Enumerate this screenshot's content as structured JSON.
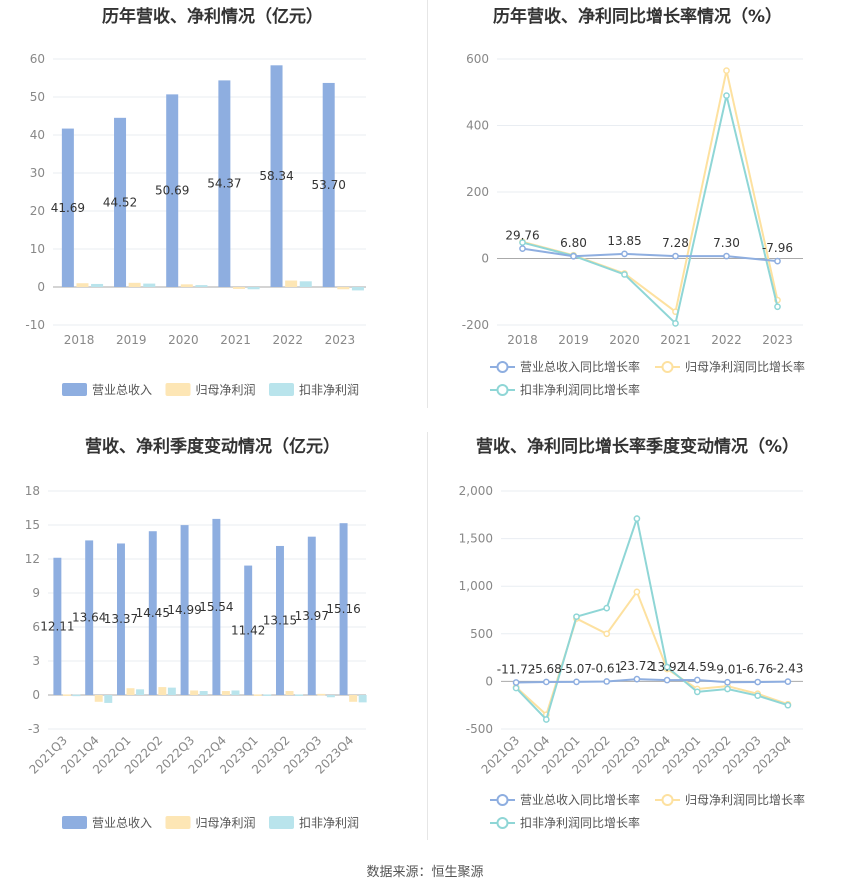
{
  "source": "数据来源：恒生聚源",
  "colors": {
    "revenue_bar": "#8eaee0",
    "netprofit_bar": "#fde6b5",
    "deducted_bar": "#b9e4ec",
    "revenue_line": "#8eaee0",
    "netprofit_line": "#fde1a0",
    "deducted_line": "#8fd6d6",
    "axis": "#aaaaaa",
    "grid": "#e9edf2",
    "label": "#333333",
    "tick": "#888888"
  },
  "chart_data": [
    {
      "id": "annual",
      "type": "bar",
      "title": "历年营收、净利情况（亿元）",
      "categories": [
        "2018",
        "2019",
        "2020",
        "2021",
        "2022",
        "2023"
      ],
      "ylim": [
        -10,
        60
      ],
      "yticks": [
        "-10",
        "0",
        "10",
        "20",
        "30",
        "40",
        "50",
        "60"
      ],
      "ytick_values": [
        -10,
        0,
        10,
        20,
        30,
        40,
        50,
        60
      ],
      "grid": true,
      "legend_position": "bottom",
      "data_labels": [
        "41.69",
        "44.52",
        "50.69",
        "54.37",
        "58.34",
        "53.70"
      ],
      "series": [
        {
          "name": "营业总收入",
          "color_key": "revenue_bar",
          "values": [
            41.69,
            44.52,
            50.69,
            54.37,
            58.34,
            53.7
          ]
        },
        {
          "name": "归母净利润",
          "color_key": "netprofit_bar",
          "values": [
            1.0,
            1.1,
            0.7,
            -0.5,
            1.7,
            -0.6
          ]
        },
        {
          "name": "扣非净利润",
          "color_key": "deducted_bar",
          "values": [
            0.8,
            0.9,
            0.5,
            -0.6,
            1.5,
            -0.9
          ]
        }
      ]
    },
    {
      "id": "annual_growth",
      "type": "line",
      "title": "历年营收、净利同比增长率情况（%）",
      "categories": [
        "2018",
        "2019",
        "2020",
        "2021",
        "2022",
        "2023"
      ],
      "ylim": [
        -200,
        600
      ],
      "yticks": [
        "-200",
        "0",
        "200",
        "400",
        "600"
      ],
      "ytick_values": [
        -200,
        0,
        200,
        400,
        600
      ],
      "grid": true,
      "legend_position": "bottom",
      "data_labels": [
        "29.76",
        "6.80",
        "13.85",
        "7.28",
        "7.30",
        "-7.96"
      ],
      "series": [
        {
          "name": "营业总收入同比增长率",
          "color_key": "revenue_line",
          "values": [
            29.76,
            6.8,
            13.85,
            7.28,
            7.3,
            -7.96
          ]
        },
        {
          "name": "归母净利润同比增长率",
          "color_key": "netprofit_line",
          "values": [
            50,
            10,
            -45,
            -160,
            565,
            -125
          ]
        },
        {
          "name": "扣非净利润同比增长率",
          "color_key": "deducted_line",
          "values": [
            48,
            8,
            -48,
            -195,
            490,
            -145
          ]
        }
      ]
    },
    {
      "id": "quarterly",
      "type": "bar",
      "title": "营收、净利季度变动情况（亿元）",
      "categories": [
        "2021Q3",
        "2021Q4",
        "2022Q1",
        "2022Q2",
        "2022Q3",
        "2022Q4",
        "2023Q1",
        "2023Q2",
        "2023Q3",
        "2023Q4"
      ],
      "ylim": [
        -3,
        18
      ],
      "yticks": [
        "-3",
        "0",
        "3",
        "6",
        "9",
        "12",
        "15",
        "18"
      ],
      "ytick_values": [
        -3,
        0,
        3,
        6,
        9,
        12,
        15,
        18
      ],
      "grid": true,
      "legend_position": "bottom",
      "data_labels": [
        "12.11",
        "13.64",
        "13.37",
        "14.45",
        "14.99",
        "15.54",
        "11.42",
        "13.15",
        "13.97",
        "15.16"
      ],
      "series": [
        {
          "name": "营业总收入",
          "color_key": "revenue_bar",
          "values": [
            12.11,
            13.64,
            13.37,
            14.45,
            14.99,
            15.54,
            11.42,
            13.15,
            13.97,
            15.16
          ]
        },
        {
          "name": "归母净利润",
          "color_key": "netprofit_bar",
          "values": [
            0.05,
            -0.6,
            0.6,
            0.7,
            0.4,
            0.35,
            0.05,
            0.35,
            0.1,
            -0.6
          ]
        },
        {
          "name": "扣非净利润",
          "color_key": "deducted_bar",
          "values": [
            0.03,
            -0.7,
            0.5,
            0.65,
            0.35,
            0.4,
            0.05,
            0.05,
            -0.2,
            -0.65
          ]
        }
      ]
    },
    {
      "id": "quarterly_growth",
      "type": "line",
      "title": "营收、净利同比增长率季度变动情况（%）",
      "categories": [
        "2021Q3",
        "2021Q4",
        "2022Q1",
        "2022Q2",
        "2022Q3",
        "2022Q4",
        "2023Q1",
        "2023Q2",
        "2023Q3",
        "2023Q4"
      ],
      "ylim": [
        -500,
        2000
      ],
      "yticks": [
        "-500",
        "0",
        "500",
        "1,000",
        "1,500",
        "2,000"
      ],
      "ytick_values": [
        -500,
        0,
        500,
        1000,
        1500,
        2000
      ],
      "grid": true,
      "legend_position": "bottom",
      "data_labels": [
        "-11.72",
        "-5.68",
        "-5.07",
        "-0.61",
        "23.72",
        "13.92",
        "14.59",
        "-9.01",
        "-6.76",
        "-2.43"
      ],
      "series": [
        {
          "name": "营业总收入同比增长率",
          "color_key": "revenue_line",
          "values": [
            -11.72,
            -5.68,
            -5.07,
            -0.61,
            23.72,
            13.92,
            14.59,
            -9.01,
            -6.76,
            -2.43
          ]
        },
        {
          "name": "归母净利润同比增长率",
          "color_key": "netprofit_line",
          "values": [
            -60,
            -350,
            660,
            500,
            940,
            130,
            -80,
            -50,
            -130,
            -240
          ]
        },
        {
          "name": "扣非净利润同比增长率",
          "color_key": "deducted_line",
          "values": [
            -70,
            -400,
            680,
            770,
            1710,
            150,
            -110,
            -80,
            -150,
            -250
          ]
        }
      ]
    }
  ]
}
